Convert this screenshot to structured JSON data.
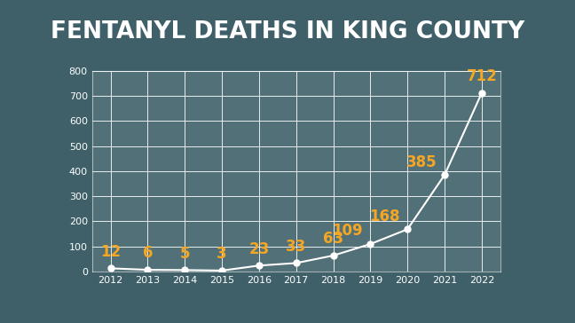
{
  "chart_data": {
    "type": "line",
    "title": "FENTANYL DEATHS IN KING COUNTY",
    "categories": [
      "2012",
      "2013",
      "2014",
      "2015",
      "2016",
      "2017",
      "2018",
      "2019",
      "2020",
      "2021",
      "2022"
    ],
    "values": [
      12,
      6,
      5,
      3,
      23,
      33,
      63,
      109,
      168,
      385,
      712
    ],
    "color": "#ffffff",
    "marker": "circle",
    "line_style": "solid",
    "ylim": [
      0,
      800
    ],
    "yticks": [
      0,
      100,
      200,
      300,
      400,
      500,
      600,
      700,
      800
    ],
    "grid": true,
    "data_labels": true
  }
}
